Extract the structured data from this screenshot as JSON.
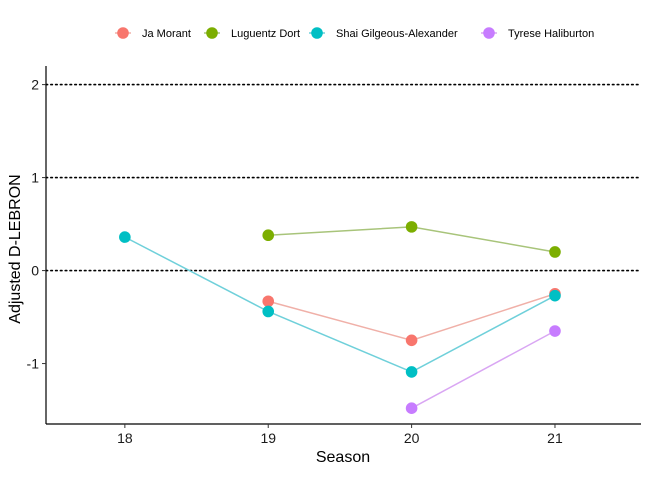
{
  "chart_data": {
    "type": "line",
    "title": "",
    "xlabel": "Season",
    "ylabel": "Adjusted D-LEBRON",
    "x": [
      18,
      19,
      20,
      21
    ],
    "xlim": [
      17.45,
      21.6
    ],
    "ylim": [
      -1.65,
      2.2
    ],
    "yticks": [
      2,
      1,
      0,
      -1
    ],
    "ytick_labels": [
      "2",
      "1",
      "0",
      "-1"
    ],
    "xtick_labels": [
      "18",
      "19",
      "20",
      "21"
    ],
    "reference_lines": [
      0,
      1,
      2
    ],
    "legend_position": "top",
    "series": [
      {
        "name": "Ja Morant",
        "color": "#F8766D",
        "line_color": "#F0B0A8",
        "points": [
          {
            "x": 19,
            "y": -0.33
          },
          {
            "x": 20,
            "y": -0.75
          },
          {
            "x": 21,
            "y": -0.25
          }
        ]
      },
      {
        "name": "Luguentz Dort",
        "color": "#7CAE00",
        "line_color": "#A8C47A",
        "points": [
          {
            "x": 19,
            "y": 0.38
          },
          {
            "x": 20,
            "y": 0.47
          },
          {
            "x": 21,
            "y": 0.2
          }
        ]
      },
      {
        "name": "Shai Gilgeous-Alexander",
        "color": "#00BFC4",
        "line_color": "#6FD0DA",
        "points": [
          {
            "x": 18,
            "y": 0.36
          },
          {
            "x": 19,
            "y": -0.44
          },
          {
            "x": 20,
            "y": -1.09
          },
          {
            "x": 21,
            "y": -0.27
          }
        ]
      },
      {
        "name": "Tyrese Haliburton",
        "color": "#C77CFF",
        "line_color": "#D9A6F3",
        "points": [
          {
            "x": 20,
            "y": -1.48
          },
          {
            "x": 21,
            "y": -0.65
          }
        ]
      }
    ]
  }
}
